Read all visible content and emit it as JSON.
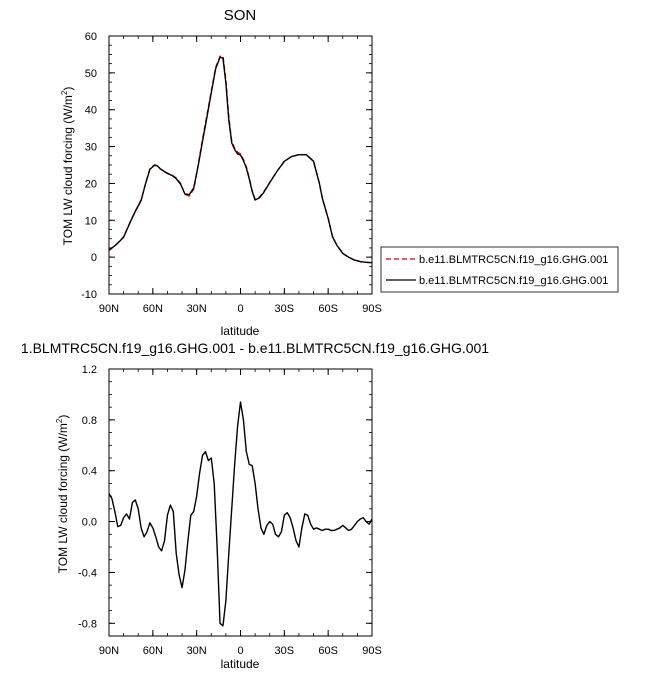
{
  "chart_data": [
    {
      "type": "line",
      "title": "SON",
      "xlabel": "latitude",
      "ylabel_main": "TOM LW cloud forcing (W/m",
      "ylabel_sup": "2",
      "ylabel_end": ")",
      "xlim": [
        90,
        -90
      ],
      "ylim": [
        -10,
        60
      ],
      "xticks": [
        90,
        60,
        30,
        0,
        -30,
        -60,
        -90
      ],
      "xtick_labels": [
        "90N",
        "60N",
        "30N",
        "0",
        "30S",
        "60S",
        "90S"
      ],
      "yticks": [
        -10,
        0,
        10,
        20,
        30,
        40,
        50,
        60
      ],
      "ytick_labels": [
        "-10",
        "0",
        "10",
        "20",
        "30",
        "40",
        "50",
        "60"
      ],
      "legend": {
        "placement": "right",
        "entries": [
          "b.e11.BLMTRC5CN.f19_g16.GHG.001",
          "b.e11.BLMTRC5CN.f19_g16.GHG.001"
        ]
      },
      "series": [
        {
          "name": "b.e11.BLMTRC5CN.f19_g16.GHG.001",
          "color": "#e00000",
          "style": "dashed",
          "x": [
            90,
            85,
            80,
            75,
            72,
            68,
            65,
            62,
            59,
            57,
            55,
            52,
            50,
            47,
            44,
            41,
            38,
            35,
            32,
            29,
            26,
            23,
            20,
            17,
            14,
            12,
            10,
            8,
            6,
            4,
            2,
            0,
            -2,
            -4,
            -6,
            -8,
            -10,
            -13,
            -16,
            -20,
            -25,
            -30,
            -35,
            -40,
            -45,
            -50,
            -54,
            -56,
            -60,
            -63,
            -66,
            -70,
            -74,
            -78,
            -82,
            -86,
            -90
          ],
          "y": [
            2.0,
            3.5,
            5.5,
            10.0,
            12.5,
            15.5,
            20.0,
            24.0,
            25.0,
            24.9,
            24.0,
            23.2,
            22.8,
            22.3,
            21.5,
            20.0,
            17.0,
            16.6,
            18.5,
            25.0,
            32.0,
            38.5,
            45.0,
            51.5,
            54.5,
            54.6,
            48.0,
            38.0,
            31.5,
            29.5,
            28.5,
            28.0,
            26.5,
            24.5,
            21.5,
            18.0,
            15.7,
            16.3,
            17.8,
            20.3,
            23.3,
            26.0,
            27.3,
            27.8,
            27.8,
            26.0,
            20.0,
            16.0,
            10.5,
            5.5,
            3.2,
            1.0,
            0.0,
            -0.8,
            -1.2,
            -1.4,
            -1.5
          ]
        },
        {
          "name": "b.e11.BLMTRC5CN.f19_g16.GHG.001",
          "color": "#000000",
          "style": "solid",
          "x": [
            90,
            85,
            80,
            75,
            72,
            68,
            65,
            62,
            59,
            57,
            55,
            52,
            50,
            47,
            44,
            41,
            38,
            35,
            32,
            29,
            26,
            23,
            20,
            17,
            14,
            12,
            10,
            8,
            6,
            4,
            2,
            0,
            -2,
            -4,
            -6,
            -8,
            -10,
            -13,
            -16,
            -20,
            -25,
            -30,
            -35,
            -40,
            -45,
            -50,
            -54,
            -56,
            -60,
            -63,
            -66,
            -70,
            -74,
            -78,
            -82,
            -86,
            -90
          ],
          "y": [
            1.8,
            3.4,
            5.4,
            9.9,
            12.4,
            15.4,
            19.9,
            23.8,
            24.9,
            24.8,
            24.0,
            23.2,
            22.7,
            22.2,
            21.3,
            19.8,
            17.1,
            17.0,
            18.8,
            24.7,
            31.4,
            37.9,
            44.6,
            51.1,
            54.2,
            54.0,
            47.2,
            37.2,
            31.0,
            29.2,
            28.0,
            27.7,
            26.2,
            24.2,
            21.2,
            17.8,
            15.5,
            16.1,
            17.6,
            20.2,
            23.3,
            26.0,
            27.3,
            27.8,
            27.8,
            26.0,
            20.0,
            16.0,
            10.5,
            5.5,
            3.2,
            1.0,
            0.0,
            -0.8,
            -1.2,
            -1.4,
            -1.5
          ]
        }
      ]
    },
    {
      "type": "line",
      "title": "1.BLMTRC5CN.f19_g16.GHG.001 - b.e11.BLMTRC5CN.f19_g16.GHG.001",
      "xlabel": "latitude",
      "ylabel_main": "TOM LW cloud forcing (W/m",
      "ylabel_sup": "2",
      "ylabel_end": ")",
      "xlim": [
        90,
        -90
      ],
      "ylim": [
        -0.9,
        1.2
      ],
      "xticks": [
        90,
        60,
        30,
        0,
        -30,
        -60,
        -90
      ],
      "xtick_labels": [
        "90N",
        "60N",
        "30N",
        "0",
        "30S",
        "60S",
        "90S"
      ],
      "yticks": [
        -0.8,
        -0.4,
        0.0,
        0.4,
        0.8,
        1.2
      ],
      "ytick_labels": [
        "-0.8",
        "-0.4",
        "0.0",
        "0.4",
        "0.8",
        "1.2"
      ],
      "series": [
        {
          "color": "#000000",
          "style": "solid",
          "x": [
            90,
            88,
            86,
            84,
            82,
            80,
            78,
            76,
            74,
            72,
            70,
            68,
            66,
            64,
            62,
            60,
            58,
            56,
            54,
            52,
            50,
            48,
            46,
            44,
            42,
            40,
            38,
            36,
            34,
            32,
            30,
            28,
            26,
            24,
            22,
            20,
            18,
            16,
            14,
            12,
            10,
            8,
            6,
            4,
            2,
            0,
            -2,
            -4,
            -6,
            -8,
            -10,
            -12,
            -14,
            -16,
            -18,
            -20,
            -22,
            -24,
            -26,
            -28,
            -30,
            -32,
            -34,
            -36,
            -38,
            -40,
            -42,
            -44,
            -46,
            -48,
            -50,
            -52,
            -54,
            -56,
            -58,
            -60,
            -62,
            -64,
            -66,
            -68,
            -70,
            -72,
            -74,
            -76,
            -78,
            -80,
            -82,
            -84,
            -86,
            -88,
            -90
          ],
          "y": [
            0.22,
            0.18,
            0.08,
            -0.04,
            -0.03,
            0.03,
            0.06,
            0.02,
            0.15,
            0.17,
            0.1,
            -0.05,
            -0.12,
            -0.08,
            -0.01,
            -0.05,
            -0.12,
            -0.2,
            -0.23,
            -0.15,
            0.05,
            0.13,
            0.08,
            -0.25,
            -0.42,
            -0.52,
            -0.38,
            -0.15,
            0.05,
            0.08,
            0.2,
            0.38,
            0.52,
            0.55,
            0.48,
            0.5,
            0.3,
            -0.2,
            -0.8,
            -0.82,
            -0.62,
            -0.25,
            0.1,
            0.45,
            0.75,
            0.94,
            0.8,
            0.55,
            0.45,
            0.44,
            0.3,
            0.1,
            -0.05,
            -0.1,
            -0.03,
            0.0,
            -0.02,
            -0.1,
            -0.12,
            -0.08,
            0.05,
            0.07,
            0.03,
            -0.05,
            -0.15,
            -0.2,
            -0.05,
            0.06,
            0.05,
            -0.02,
            -0.06,
            -0.05,
            -0.06,
            -0.07,
            -0.06,
            -0.06,
            -0.07,
            -0.07,
            -0.06,
            -0.05,
            -0.03,
            -0.05,
            -0.07,
            -0.06,
            -0.03,
            0.0,
            0.02,
            0.03,
            0.0,
            -0.02,
            0.02
          ]
        }
      ]
    }
  ]
}
